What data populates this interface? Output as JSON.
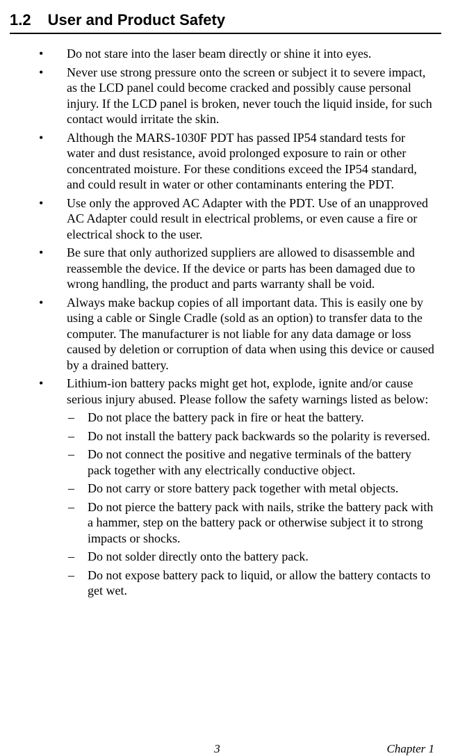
{
  "header": {
    "number": "1.2",
    "title": "User and Product Safety"
  },
  "bullets": [
    "Do not stare into the laser beam directly or shine it into eyes.",
    "Never use strong pressure onto the screen or subject it to severe impact, as the LCD panel could become cracked and possibly cause personal injury. If the LCD panel is broken, never touch the liquid inside, for such contact would irritate the skin.",
    "Although the MARS-1030F PDT has passed IP54 standard tests for water and dust resistance, avoid prolonged exposure to rain or other concentrated moisture. For these conditions exceed the IP54 standard, and could result in water or other contaminants entering the PDT.",
    "Use only the approved AC Adapter with the PDT. Use of an unapproved AC Adapter could result in electrical problems, or even cause a fire or electrical shock to the user.",
    "Be sure that only authorized suppliers are allowed to disassemble and reassemble the device. If the device or parts has been damaged due to wrong handling, the product and parts warranty shall be void.",
    "Always make backup copies of all important data. This is easily one by using a cable or Single Cradle (sold as an option) to transfer data to the computer. The manufacturer is not liable for any data damage or loss caused by deletion or corruption of data when using this device or caused by a drained battery.",
    "Lithium-ion battery packs might get hot, explode, ignite and/or cause serious injury abused. Please follow the safety warnings listed as below:"
  ],
  "sub_bullets": [
    "Do not place the battery pack in fire or heat the battery.",
    "Do not install the battery pack backwards so the polarity is reversed.",
    "Do not connect the positive and negative terminals of the battery pack together with any electrically conductive object.",
    "Do not carry or store battery pack together with metal objects.",
    "Do not pierce the battery pack with nails, strike the battery pack with a hammer, step on the battery pack or otherwise subject it to strong impacts or shocks.",
    "Do not solder directly onto the battery pack.",
    "Do not expose battery pack to liquid, or allow the battery contacts to get wet."
  ],
  "footer": {
    "page": "3",
    "chapter": "Chapter 1"
  }
}
